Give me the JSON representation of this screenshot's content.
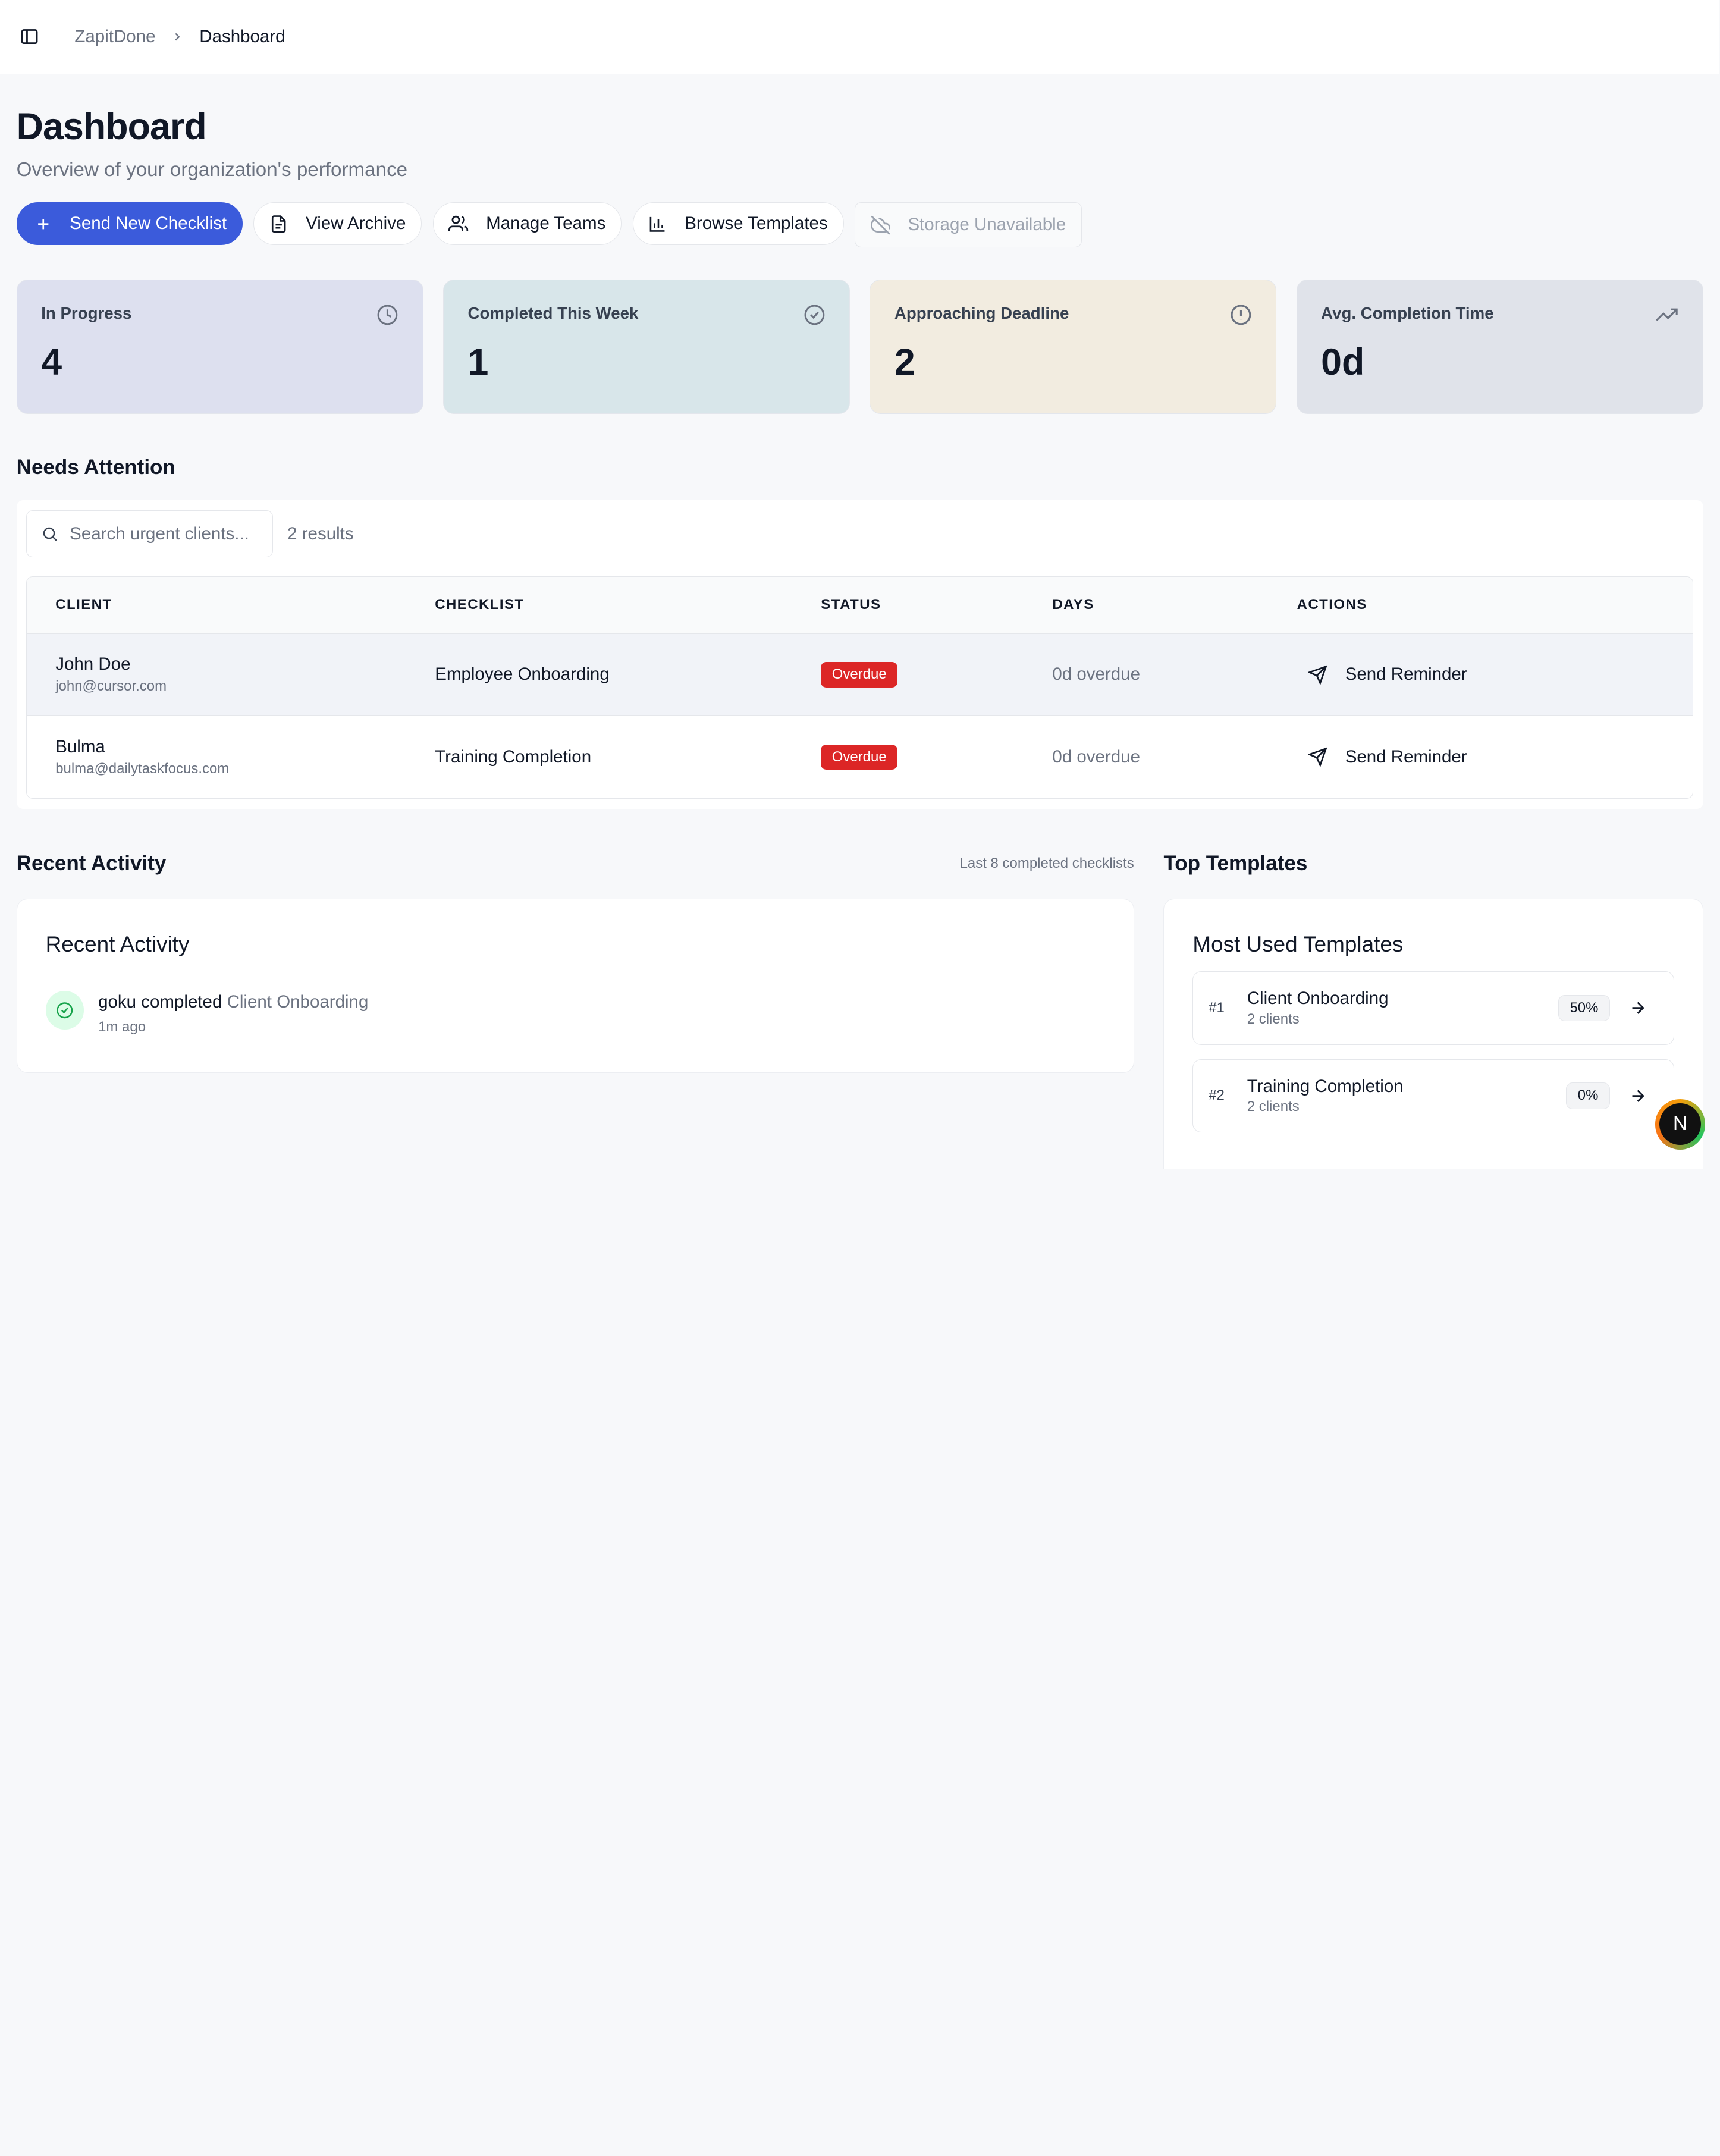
{
  "breadcrumb": {
    "root": "ZapitDone",
    "current": "Dashboard"
  },
  "header": {
    "title": "Dashboard",
    "subtitle": "Overview of your organization's performance"
  },
  "actions": {
    "send": "Send New Checklist",
    "archive": "View Archive",
    "teams": "Manage Teams",
    "templates": "Browse Templates",
    "storage": "Storage Unavailable"
  },
  "stats": [
    {
      "label": "In Progress",
      "value": "4",
      "color": "#dde0ef",
      "icon": "clock-icon"
    },
    {
      "label": "Completed This Week",
      "value": "1",
      "color": "#d8e6ea",
      "icon": "check-circle-icon"
    },
    {
      "label": "Approaching Deadline",
      "value": "2",
      "color": "#f2ece0",
      "icon": "alert-circle-icon"
    },
    {
      "label": "Avg. Completion Time",
      "value": "0d",
      "color": "#e0e3ea",
      "icon": "trending-up-icon"
    }
  ],
  "attention": {
    "title": "Needs Attention",
    "search_placeholder": "Search urgent clients...",
    "results": "2 results",
    "columns": [
      "CLIENT",
      "CHECKLIST",
      "STATUS",
      "DAYS",
      "ACTIONS"
    ],
    "rows": [
      {
        "name": "John Doe",
        "email": "john@cursor.com",
        "checklist": "Employee Onboarding",
        "status": "Overdue",
        "days": "0d overdue",
        "action": "Send Reminder"
      },
      {
        "name": "Bulma",
        "email": "bulma@dailytaskfocus.com",
        "checklist": "Training Completion",
        "status": "Overdue",
        "days": "0d overdue",
        "action": "Send Reminder"
      }
    ]
  },
  "recent": {
    "heading": "Recent Activity",
    "note": "Last 8 completed checklists",
    "card_title": "Recent Activity",
    "items": [
      {
        "actor": "goku completed",
        "target": "Client Onboarding",
        "time": "1m ago"
      }
    ]
  },
  "top_templates": {
    "heading": "Top Templates",
    "card_title": "Most Used Templates",
    "items": [
      {
        "rank": "#1",
        "name": "Client Onboarding",
        "count": "2 clients",
        "pct": "50%"
      },
      {
        "rank": "#2",
        "name": "Training Completion",
        "count": "2 clients",
        "pct": "0%"
      }
    ]
  },
  "fab": {
    "letter": "N"
  },
  "colors": {
    "primary": "#3b5bdb",
    "overdue": "#dc2626",
    "success": "#16a34a"
  }
}
